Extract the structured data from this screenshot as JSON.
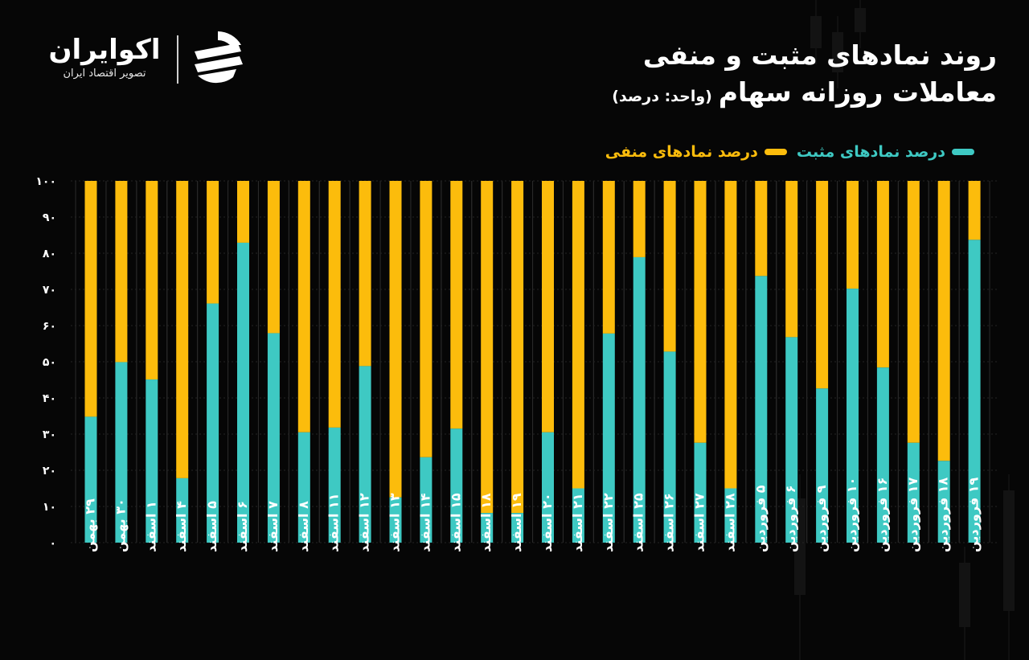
{
  "title": {
    "line1": "روند نمادهای مثبت و منفی",
    "line2": "معاملات روزانه سهام",
    "unit": "(واحد: درصد)"
  },
  "logo": {
    "name": "اکوایران",
    "subtitle": "تصویر اقتصاد ایران",
    "icon": "ecoiran-logo-icon"
  },
  "colors": {
    "background": "#060606",
    "positive": "#3ec9c3",
    "negative": "#fcbc0c",
    "text": "#ffffff"
  },
  "legend": {
    "positive_label": "درصد نمادهای مثبت",
    "negative_label": "درصد نمادهای منفی",
    "placement": "top-right"
  },
  "chart_data": {
    "type": "bar",
    "stacked": true,
    "x_direction": "left-to-right",
    "ylim": [
      0,
      100
    ],
    "yticks": [
      0,
      10,
      20,
      30,
      40,
      50,
      60,
      70,
      80,
      90,
      100
    ],
    "ytick_labels": [
      "۰",
      "۱۰",
      "۲۰",
      "۳۰",
      "۴۰",
      "۵۰",
      "۶۰",
      "۷۰",
      "۸۰",
      "۹۰",
      "۱۰۰"
    ],
    "grid": true,
    "categories": [
      "۲۹ بهمن",
      "۳۰ بهمن",
      "۱ اسفند",
      "۴ اسفند",
      "۵ اسفند",
      "۶ اسفند",
      "۷ اسفند",
      "۸ اسفند",
      "۱۱ اسفند",
      "۱۲ اسفند",
      "۱۳ اسفند",
      "۱۴ اسفند",
      "۱۵ اسفند",
      "۱۸ اسفند",
      "۱۹ اسفند",
      "۲۰ اسفند",
      "۲۱ اسفند",
      "۲۲ اسفند",
      "۲۵ اسفند",
      "۲۶ اسفند",
      "۲۷ اسفند",
      "۲۸ اسفند",
      "۵ فروردین",
      "۶ فروردین",
      "۹ فروردین",
      "۱۰ فروردین",
      "۱۶ فروردین",
      "۱۷ فروردین",
      "۱۸ فروردین",
      "۱۹ فروردین"
    ],
    "series": [
      {
        "name": "درصد نمادهای مثبت",
        "color": "#3ec9c3",
        "values": [
          34.8,
          49.9,
          45.1,
          17.8,
          66.1,
          82.9,
          57.9,
          30.5,
          31.8,
          48.8,
          12.5,
          23.6,
          31.5,
          8.2,
          8.2,
          30.5,
          15.0,
          57.8,
          78.9,
          52.8,
          27.6,
          15.0,
          73.7,
          56.8,
          42.6,
          70.2,
          48.4,
          27.6,
          22.6,
          83.7
        ]
      },
      {
        "name": "درصد نمادهای منفی",
        "color": "#fcbc0c",
        "values": [
          65.2,
          50.1,
          54.9,
          82.2,
          33.9,
          17.1,
          42.1,
          69.5,
          68.2,
          51.2,
          87.5,
          76.4,
          68.5,
          91.8,
          91.8,
          69.5,
          85.0,
          42.2,
          21.1,
          47.2,
          72.4,
          85.0,
          26.3,
          43.2,
          57.4,
          29.8,
          51.6,
          72.4,
          77.4,
          16.3
        ]
      }
    ]
  }
}
